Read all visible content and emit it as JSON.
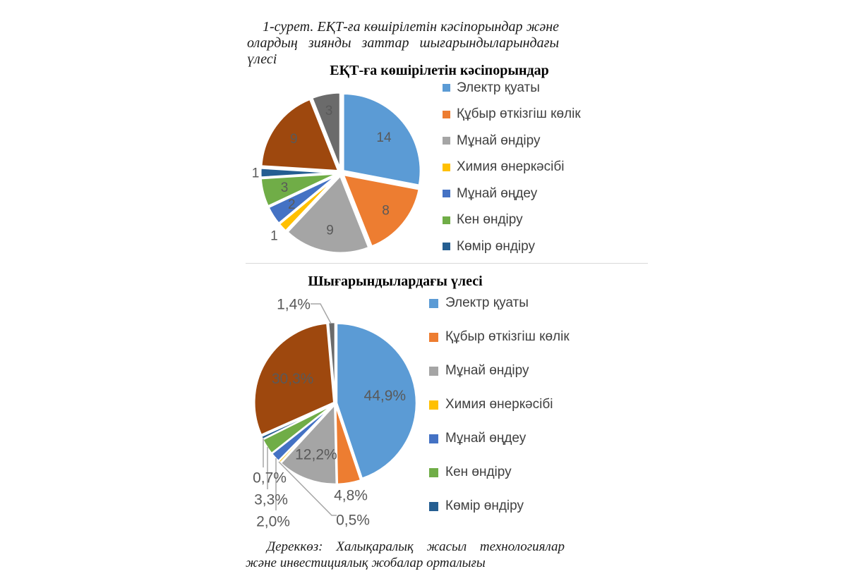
{
  "figure": {
    "caption": "1-сурет. ЕҚТ-ға көшірілетін кәсіпорындар және олардың зиянды заттар шығарындыларындағы үлесі",
    "source": "Дереккөз: Халықаралық жасыл технологиялар және инвестициялық жобалар орталығы"
  },
  "palette": {
    "slice_label_color": "#595959",
    "legend_text_color": "#404040",
    "leader_line_color": "#a6a6a6",
    "divider_color": "#d9d9d9"
  },
  "chart_data": [
    {
      "type": "pie",
      "title": "ЕҚТ-ға көшірілетін кәсіпорындар",
      "unit": "enterprises_count",
      "legend_position": "right",
      "legend": [
        "Электр қуаты",
        "Құбыр өткізгіш көлік",
        "Мұнай өндіру",
        "Химия өнеркәсібі",
        "Мұнай өңдеу",
        "Кен өндіру",
        "Көмір өндіру"
      ],
      "slices": [
        {
          "name": "Электр қуаты",
          "value": 14,
          "display": "14",
          "color": "#5B9BD5",
          "in_legend": true
        },
        {
          "name": "Құбыр өткізгіш көлік",
          "value": 8,
          "display": "8",
          "color": "#ED7D31",
          "in_legend": true
        },
        {
          "name": "Мұнай өндіру",
          "value": 9,
          "display": "9",
          "color": "#A5A5A5",
          "in_legend": true
        },
        {
          "name": "Химия өнеркәсібі",
          "value": 1,
          "display": "1",
          "color": "#FFC000",
          "in_legend": true
        },
        {
          "name": "Мұнай өңдеу",
          "value": 2,
          "display": "2",
          "color": "#4472C4",
          "in_legend": true
        },
        {
          "name": "Кен өндіру",
          "value": 3,
          "display": "3",
          "color": "#70AD47",
          "in_legend": true
        },
        {
          "name": "Көмір өндіру",
          "value": 1,
          "display": "1",
          "color": "#255E91",
          "in_legend": true
        },
        {
          "name": "",
          "value": 9,
          "display": "9",
          "color": "#9E480E",
          "in_legend": false
        },
        {
          "name": "",
          "value": 3,
          "display": "3",
          "color": "#6B6B6B",
          "in_legend": false
        }
      ]
    },
    {
      "type": "pie",
      "title": "Шығарындылардағы үлесі",
      "unit": "percent_of_emissions",
      "legend_position": "right",
      "legend": [
        "Электр қуаты",
        "Құбыр өткізгіш көлік",
        "Мұнай өндіру",
        "Химия өнеркәсібі",
        "Мұнай өңдеу",
        "Кен өндіру",
        "Көмір өндіру"
      ],
      "slices": [
        {
          "name": "Электр қуаты",
          "value": 44.9,
          "display": "44,9%",
          "color": "#5B9BD5",
          "in_legend": true
        },
        {
          "name": "Құбыр өткізгіш көлік",
          "value": 4.8,
          "display": "4,8%",
          "color": "#ED7D31",
          "in_legend": true
        },
        {
          "name": "Мұнай өндіру",
          "value": 12.2,
          "display": "12,2%",
          "color": "#A5A5A5",
          "in_legend": true
        },
        {
          "name": "Химия өнеркәсібі",
          "value": 0.5,
          "display": "0,5%",
          "color": "#FFC000",
          "in_legend": true
        },
        {
          "name": "Мұнай өңдеу",
          "value": 2.0,
          "display": "2,0%",
          "color": "#4472C4",
          "in_legend": true
        },
        {
          "name": "Кен өндіру",
          "value": 3.3,
          "display": "3,3%",
          "color": "#70AD47",
          "in_legend": true
        },
        {
          "name": "Көмір өндіру",
          "value": 0.7,
          "display": "0,7%",
          "color": "#255E91",
          "in_legend": true
        },
        {
          "name": "",
          "value": 30.3,
          "display": "30,3%",
          "color": "#9E480E",
          "in_legend": false
        },
        {
          "name": "",
          "value": 1.4,
          "display": "1,4%",
          "color": "#6B6B6B",
          "in_legend": false
        }
      ]
    }
  ]
}
